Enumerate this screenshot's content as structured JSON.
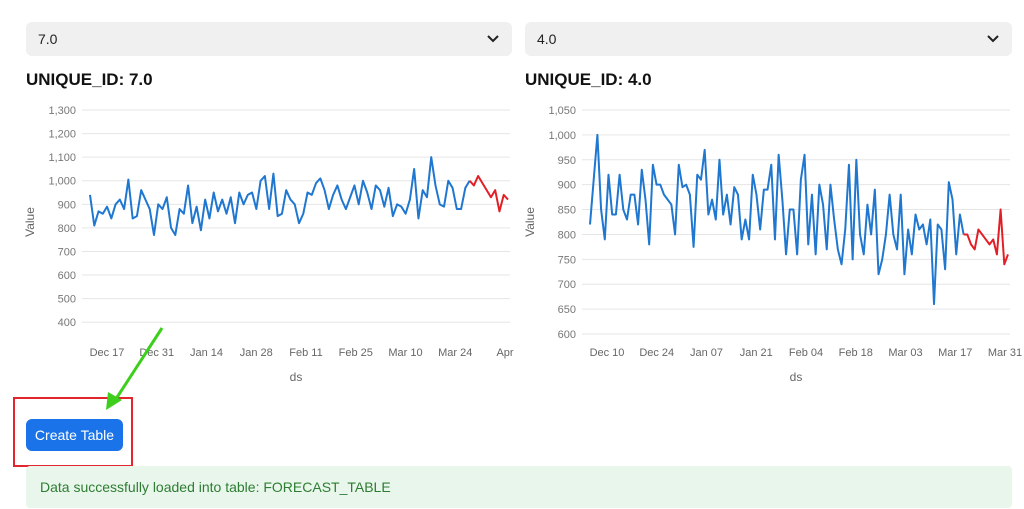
{
  "selects": [
    {
      "value": "7.0"
    },
    {
      "value": "4.0"
    }
  ],
  "charts": [
    {
      "title": "UNIQUE_ID: 7.0"
    },
    {
      "title": "UNIQUE_ID: 4.0"
    }
  ],
  "button": {
    "label": "Create Table"
  },
  "status": {
    "message": "Data successfully loaded into table: FORECAST_TABLE"
  },
  "icons": {
    "select_chevron": "chevron-down-icon",
    "annotation_arrow": "green-arrow"
  },
  "colors": {
    "history": "#1f77d0",
    "forecast": "#e21f26",
    "button": "#1a73e8",
    "success_bg": "#e9f6ec",
    "success_text": "#2e7d32"
  },
  "chart_data": [
    {
      "type": "line",
      "title": "",
      "xlabel": "ds",
      "ylabel": "Value",
      "ylim": [
        350,
        1300
      ],
      "yticks": [
        400,
        500,
        600,
        700,
        800,
        900,
        "1,000",
        "1,100",
        "1,200",
        "1,300"
      ],
      "xticks": [
        "Dec 17",
        "Dec 31",
        "Jan 14",
        "Jan 28",
        "Feb 11",
        "Feb 25",
        "Mar 10",
        "Mar 24",
        "Apr"
      ],
      "series": [
        {
          "values": [
            940,
            810,
            870,
            860,
            890,
            840,
            900,
            920,
            880,
            1005,
            840,
            850,
            960,
            920,
            880,
            770,
            900,
            880,
            930,
            800,
            770,
            880,
            860,
            980,
            820,
            890,
            790,
            920,
            840,
            950,
            870,
            920,
            860,
            930,
            820,
            950,
            900,
            940,
            950,
            880,
            1000,
            1020,
            880,
            1030,
            850,
            860,
            960,
            920,
            900,
            820,
            860,
            950,
            940,
            990,
            1010,
            960,
            880,
            940,
            980,
            920,
            880,
            930,
            980,
            900,
            1000,
            950,
            880,
            980,
            960,
            890,
            970,
            850,
            900,
            890,
            860,
            920,
            1050,
            840,
            960,
            930,
            1100,
            980,
            900,
            890,
            1000,
            970,
            880,
            880,
            970,
            1000
          ]
        },
        {
          "values": [
            980,
            1020,
            990,
            960,
            930,
            960,
            870,
            940,
            920
          ]
        }
      ]
    },
    {
      "type": "line",
      "title": "",
      "xlabel": "ds",
      "ylabel": "Value",
      "ylim": [
        600,
        1050
      ],
      "yticks": [
        600,
        650,
        700,
        750,
        800,
        850,
        900,
        950,
        "1,000",
        "1,050"
      ],
      "xticks": [
        "Dec 10",
        "Dec 24",
        "Jan 07",
        "Jan 21",
        "Feb 04",
        "Feb 18",
        "Mar 03",
        "Mar 17",
        "Mar 31"
      ],
      "series": [
        {
          "values": [
            820,
            910,
            1000,
            850,
            790,
            920,
            840,
            840,
            920,
            850,
            830,
            880,
            880,
            820,
            930,
            870,
            780,
            940,
            900,
            900,
            880,
            870,
            860,
            800,
            940,
            895,
            900,
            880,
            775,
            920,
            910,
            970,
            840,
            870,
            830,
            950,
            840,
            880,
            820,
            895,
            880,
            790,
            830,
            790,
            920,
            880,
            810,
            890,
            890,
            940,
            790,
            960,
            870,
            760,
            850,
            850,
            760,
            910,
            960,
            780,
            880,
            760,
            900,
            860,
            770,
            900,
            830,
            770,
            740,
            810,
            940,
            750,
            950,
            800,
            760,
            860,
            800,
            890,
            720,
            750,
            800,
            880,
            800,
            770,
            880,
            720,
            810,
            760,
            840,
            810,
            820,
            780,
            830,
            660,
            820,
            810,
            730,
            905,
            870,
            760,
            840,
            800
          ]
        },
        {
          "values": [
            800,
            780,
            770,
            810,
            800,
            790,
            780,
            790,
            760,
            850,
            740,
            760
          ]
        }
      ]
    }
  ]
}
